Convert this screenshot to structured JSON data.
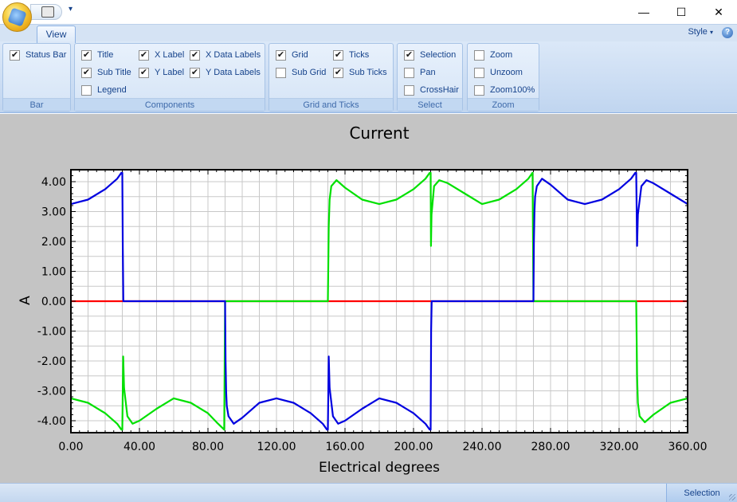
{
  "ribbon": {
    "tabs": [
      {
        "label": "View"
      }
    ],
    "style_label": "Style",
    "groups": [
      {
        "label": "Bar",
        "items": [
          {
            "label": "Status Bar",
            "checked": true
          }
        ]
      },
      {
        "label": "Components",
        "items": [
          {
            "label": "Title",
            "checked": true
          },
          {
            "label": "Sub Title",
            "checked": true
          },
          {
            "label": "Legend",
            "checked": false
          },
          {
            "label": "X Label",
            "checked": true
          },
          {
            "label": "Y Label",
            "checked": true
          },
          {
            "label": "X Data Labels",
            "checked": true
          },
          {
            "label": "Y Data Labels",
            "checked": true
          }
        ]
      },
      {
        "label": "Grid and Ticks",
        "items": [
          {
            "label": "Grid",
            "checked": true
          },
          {
            "label": "Sub Grid",
            "checked": false
          },
          {
            "label": "Ticks",
            "checked": true
          },
          {
            "label": "Sub Ticks",
            "checked": true
          }
        ]
      },
      {
        "label": "Select",
        "items": [
          {
            "label": "Selection",
            "checked": true
          },
          {
            "label": "Pan",
            "checked": false
          },
          {
            "label": "CrossHair",
            "checked": false
          }
        ]
      },
      {
        "label": "Zoom",
        "items": [
          {
            "label": "Zoom",
            "checked": false
          },
          {
            "label": "Unzoom",
            "checked": false
          },
          {
            "label": "Zoom100%",
            "checked": false
          }
        ]
      }
    ]
  },
  "window": {
    "minimize": "—",
    "maximize": "☐",
    "close": "✕"
  },
  "chart_data": {
    "type": "line",
    "title": "Current",
    "xlabel": "Electrical degrees",
    "ylabel": "A",
    "xlim": [
      0,
      360
    ],
    "ylim": [
      -4.4,
      4.4
    ],
    "x_ticks": [
      "0.00",
      "40.00",
      "80.00",
      "120.00",
      "160.00",
      "200.00",
      "240.00",
      "280.00",
      "320.00",
      "360.00"
    ],
    "y_ticks": [
      "4.00",
      "3.00",
      "2.00",
      "1.00",
      "0.00",
      "-1.00",
      "-2.00",
      "-3.00",
      "-4.00"
    ],
    "grid": true,
    "series": [
      {
        "color": "#ff0000",
        "x": [
          0,
          360
        ],
        "y": [
          0,
          0
        ]
      },
      {
        "color": "#00e000",
        "x": [
          0,
          10,
          20,
          27,
          29.5,
          30,
          30.5,
          31,
          33,
          36,
          40,
          50,
          60,
          70,
          80,
          85,
          89.5,
          90,
          150,
          150.5,
          151,
          152,
          155,
          160,
          170,
          180,
          190,
          200,
          207,
          209.5,
          210,
          210.2,
          210.5,
          212,
          215,
          220,
          230,
          240,
          250,
          260,
          267,
          269.5,
          270,
          270.5,
          271,
          330,
          330.5,
          331,
          332,
          335,
          340,
          350,
          360
        ],
        "y": [
          -3.25,
          -3.4,
          -3.75,
          -4.1,
          -4.3,
          -4.3,
          -1.85,
          -2.9,
          -3.85,
          -4.1,
          -4.0,
          -3.6,
          -3.25,
          -3.4,
          -3.75,
          -4.05,
          -4.3,
          0,
          0,
          2.5,
          3.4,
          3.85,
          4.05,
          3.8,
          3.4,
          3.25,
          3.4,
          3.75,
          4.1,
          4.3,
          4.3,
          1.85,
          2.9,
          3.85,
          4.05,
          3.95,
          3.6,
          3.25,
          3.4,
          3.75,
          4.1,
          4.3,
          0,
          0,
          0,
          0,
          -2.5,
          -3.4,
          -3.85,
          -4.05,
          -3.8,
          -3.4,
          -3.25
        ]
      },
      {
        "color": "#0000e0",
        "x": [
          0,
          10,
          20,
          27,
          29.5,
          30,
          30.3,
          30.6,
          90,
          90.3,
          90.6,
          91,
          92,
          95,
          100,
          110,
          120,
          130,
          140,
          147,
          149.5,
          150,
          150.5,
          151,
          153,
          156,
          160,
          170,
          180,
          190,
          200,
          207,
          209.5,
          210,
          210.3,
          210.6,
          270,
          270.3,
          270.6,
          271,
          272,
          275,
          280,
          290,
          300,
          310,
          320,
          327,
          329.5,
          330,
          330.5,
          331,
          333,
          336,
          340,
          350,
          360
        ],
        "y": [
          3.25,
          3.4,
          3.75,
          4.1,
          4.3,
          4.3,
          1.8,
          0,
          0,
          -2.0,
          -3.0,
          -3.5,
          -3.85,
          -4.1,
          -3.9,
          -3.4,
          -3.25,
          -3.4,
          -3.75,
          -4.1,
          -4.3,
          -4.3,
          -1.85,
          -2.9,
          -3.85,
          -4.1,
          -4.0,
          -3.6,
          -3.25,
          -3.4,
          -3.75,
          -4.1,
          -4.3,
          -4.3,
          -1.0,
          0,
          0,
          2.0,
          3.0,
          3.5,
          3.85,
          4.1,
          3.9,
          3.4,
          3.25,
          3.4,
          3.75,
          4.1,
          4.3,
          4.3,
          1.85,
          2.9,
          3.85,
          4.05,
          3.95,
          3.6,
          3.25
        ]
      }
    ]
  },
  "status": {
    "mode": "Selection"
  }
}
